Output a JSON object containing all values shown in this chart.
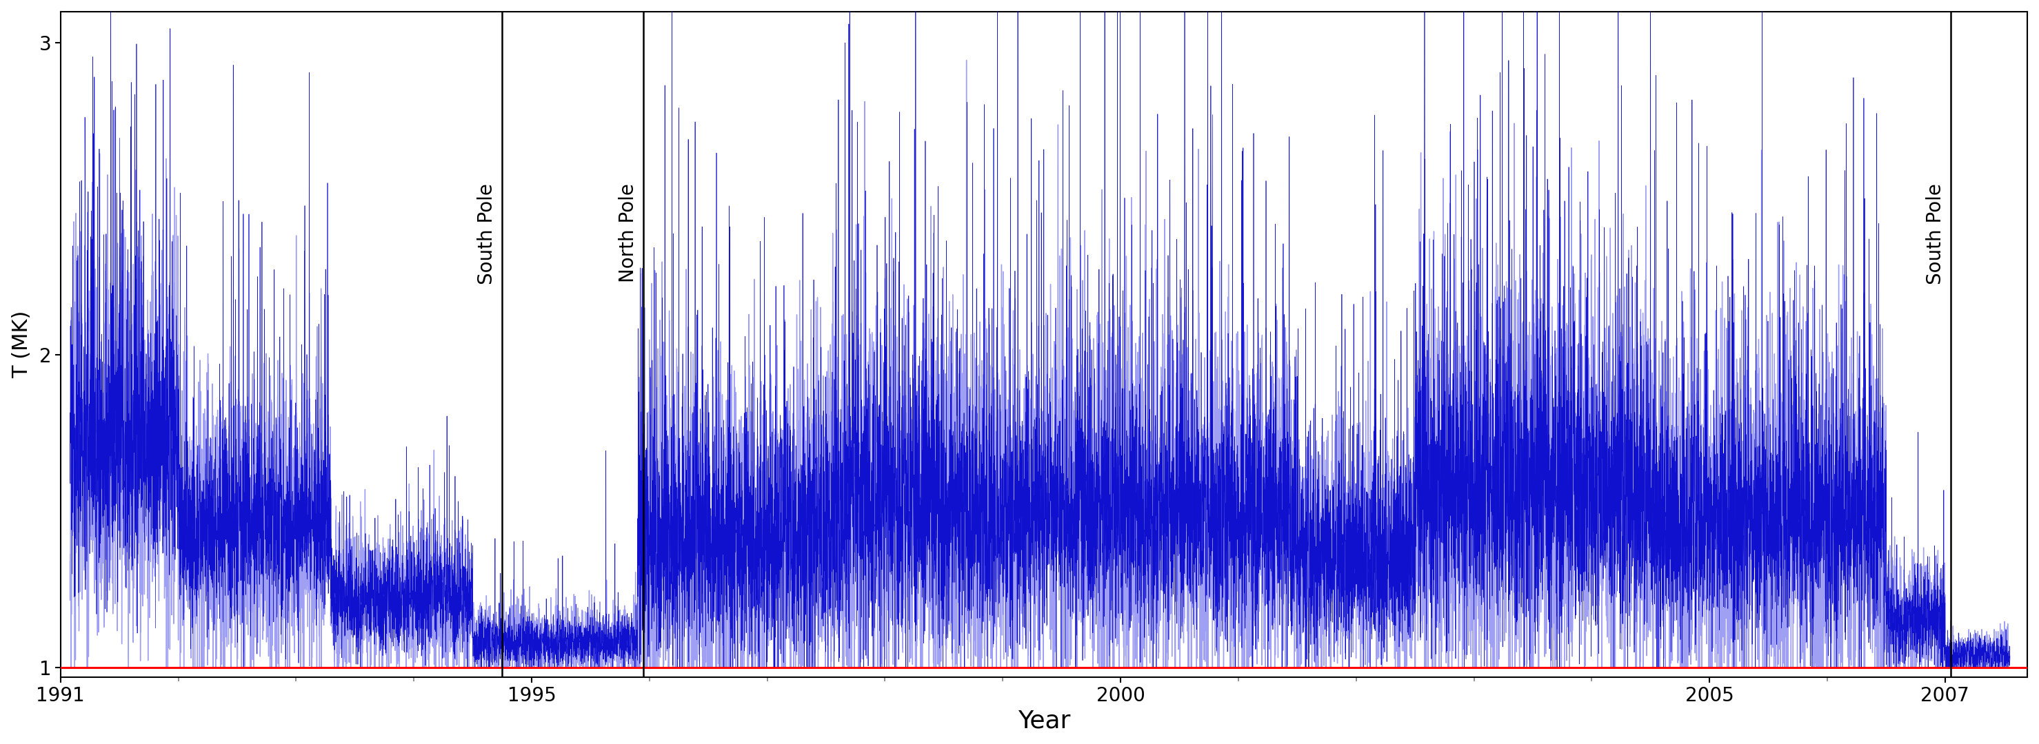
{
  "xlabel": "Year",
  "ylabel": "T (MK)",
  "xlim": [
    1991.0,
    2007.7
  ],
  "ylim": [
    0.97,
    3.1
  ],
  "yticks": [
    1,
    2,
    3
  ],
  "xticks": [
    1991,
    1995,
    2000,
    2005,
    2007
  ],
  "red_line_y": 1.0,
  "ann1_x": 1994.75,
  "ann1_label": "South Pole",
  "ann2_x": 1995.95,
  "ann2_label": "North Pole",
  "ann3_x": 2007.05,
  "ann3_label": "South Pole",
  "dark_blue": "#0000CC",
  "light_blue": "#7777EE",
  "red_line_color": "#FF0000",
  "ann_line_color": "#000000",
  "background_color": "#FFFFFF",
  "seed": 12345
}
